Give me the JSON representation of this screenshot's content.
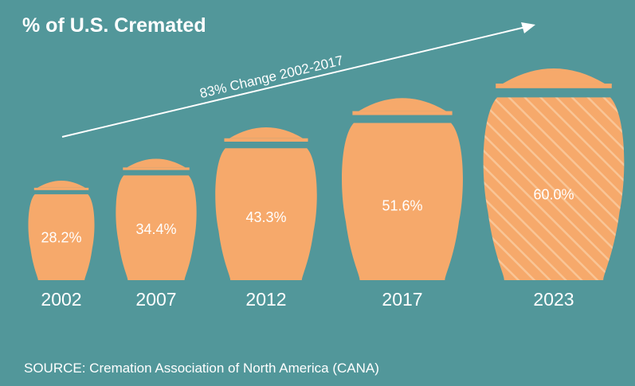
{
  "colors": {
    "background": "#52979A",
    "urn": "#F6A96B",
    "urn_hatch": "#F9C596",
    "text": "#FFFFFF"
  },
  "chart_data": {
    "type": "bar",
    "title": "% of U.S. Cremated",
    "xlabel": "",
    "ylabel": "",
    "categories": [
      "2002",
      "2007",
      "2012",
      "2017",
      "2023"
    ],
    "values": [
      28.2,
      34.4,
      43.3,
      51.6,
      60.0
    ],
    "value_labels": [
      "28.2%",
      "34.4%",
      "43.3%",
      "51.6%",
      "60.0%"
    ],
    "highlight": [
      "2023"
    ],
    "annotation": "83% Change 2002-2017",
    "source": "SOURCE: Cremation Association of North America (CANA)"
  }
}
